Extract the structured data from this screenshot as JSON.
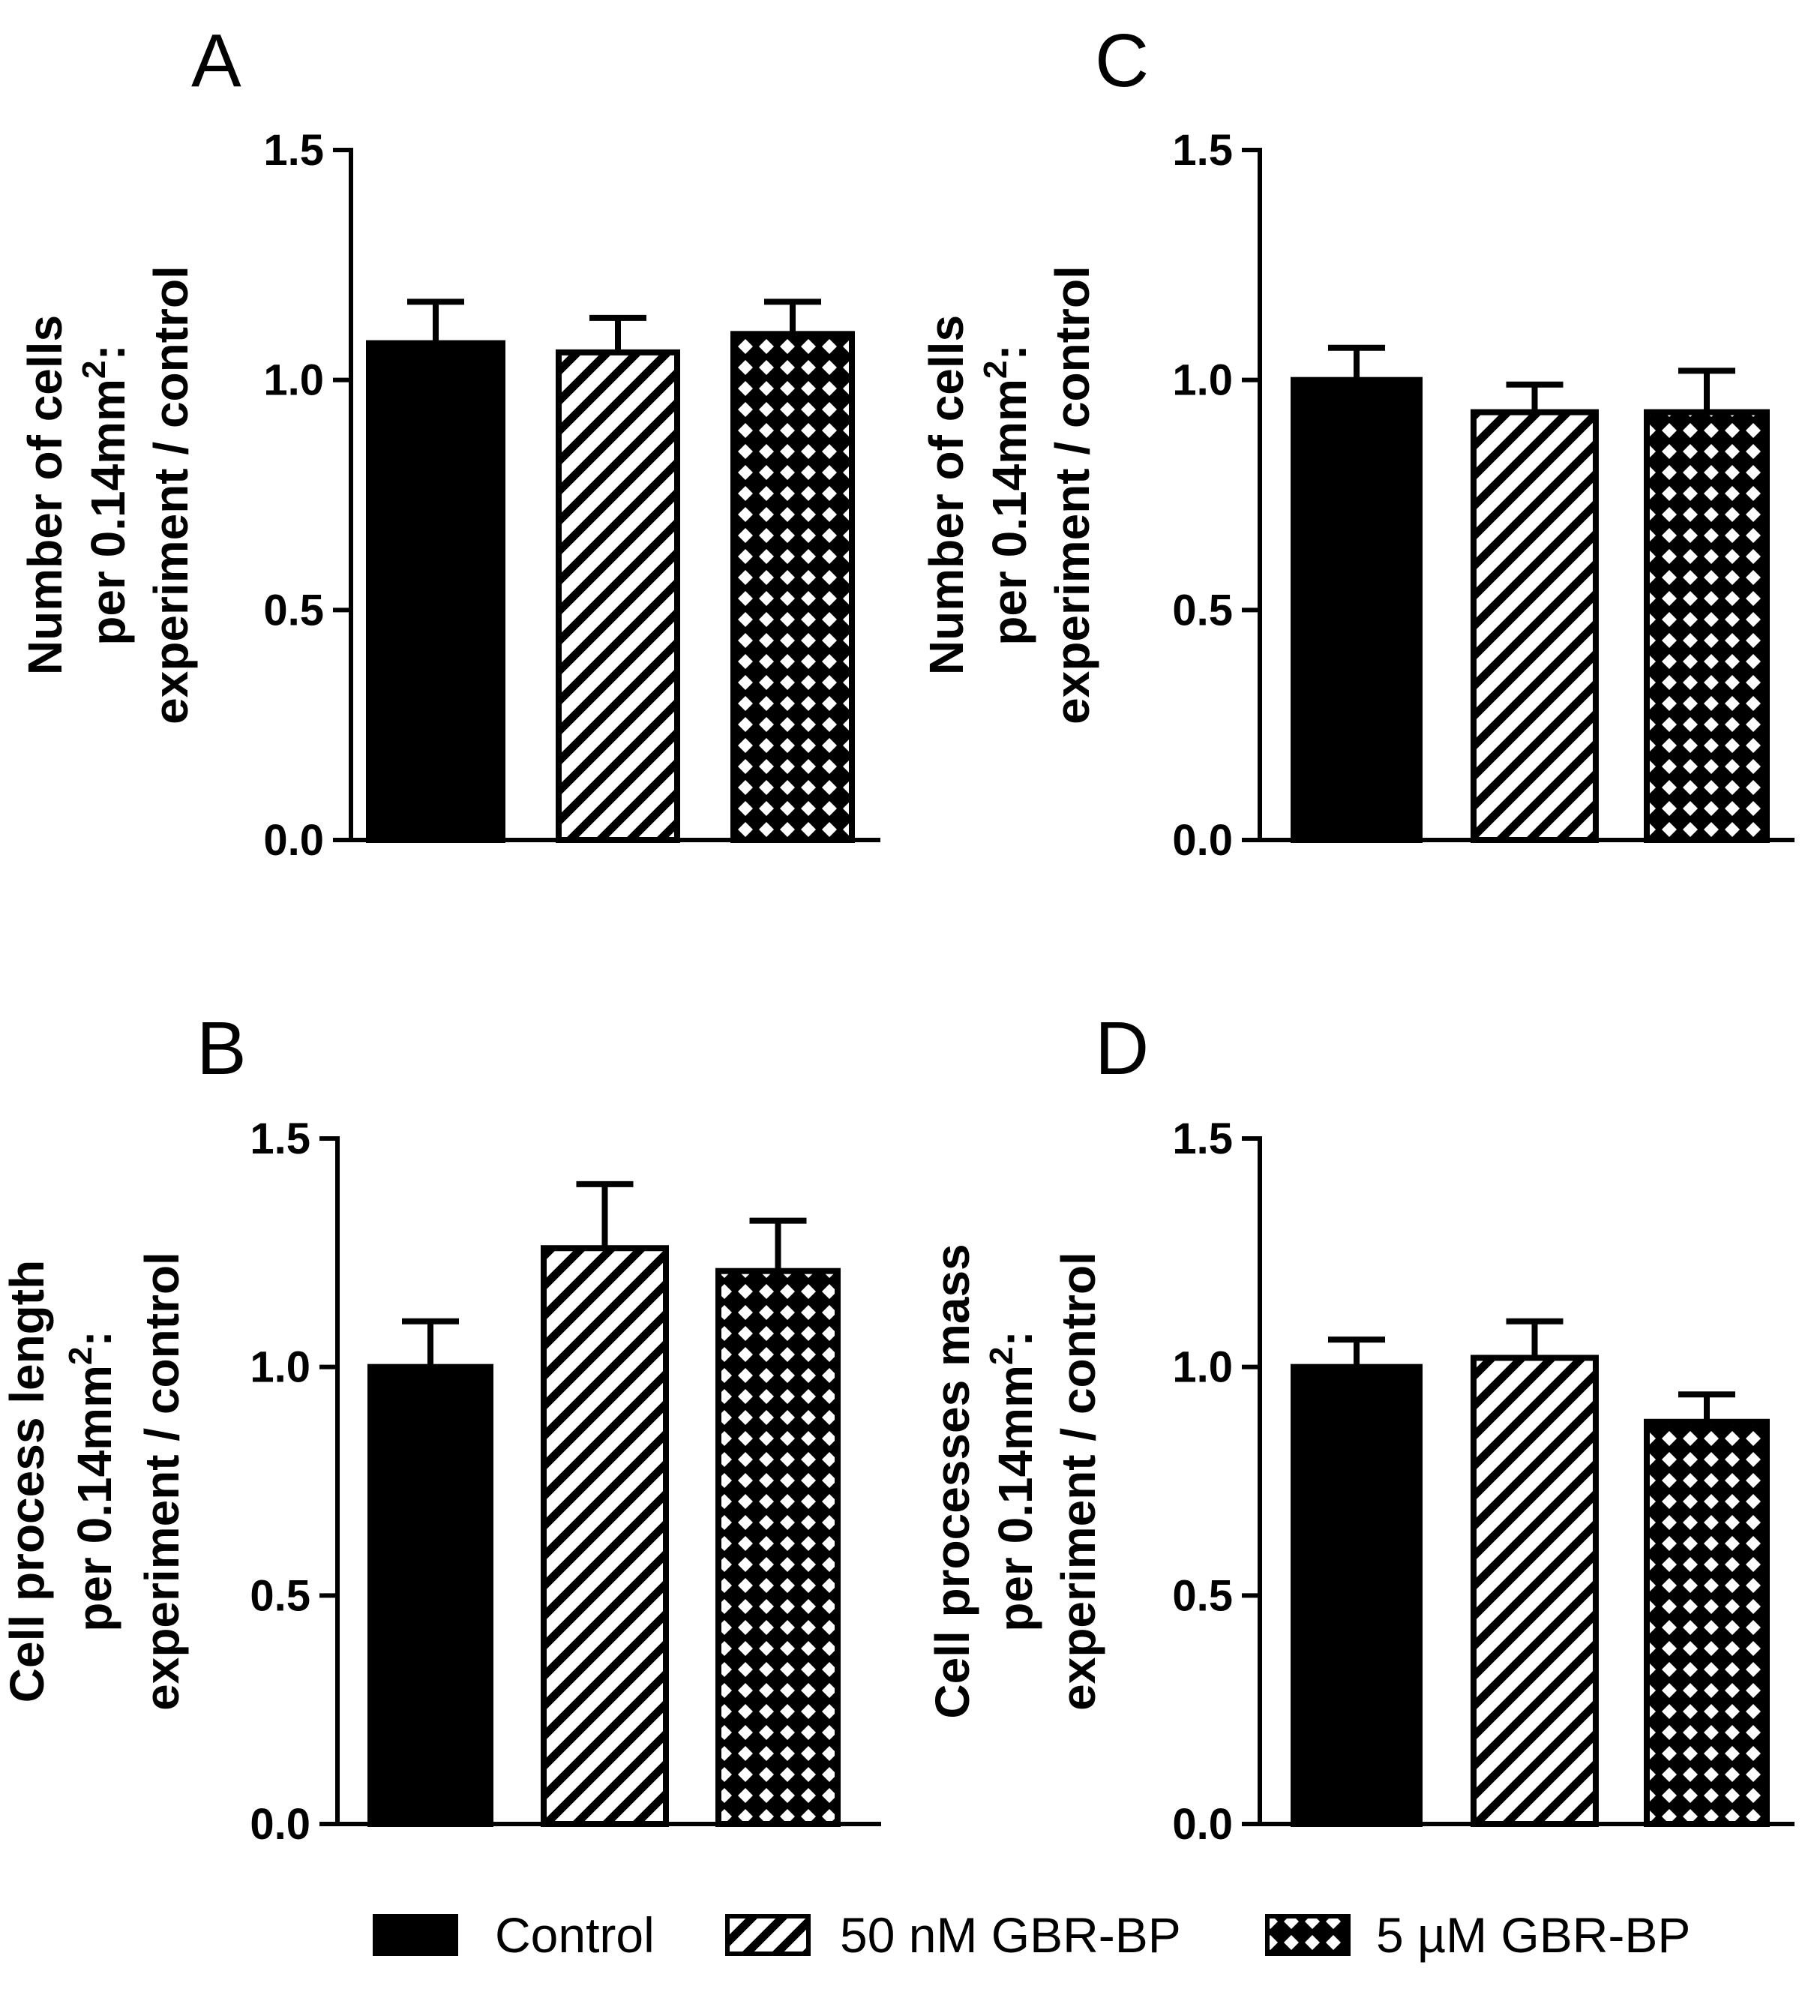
{
  "chart_data": [
    {
      "id": "A",
      "type": "bar",
      "panel_label": "A",
      "ylabel_lines": [
        "Number of cells",
        "per 0.14mm",
        "experiment / control"
      ],
      "ylabel_superscript": "2",
      "ylabel_sup_suffix": ":",
      "ylim": [
        0,
        1.5
      ],
      "yticks": [
        "0.0",
        "0.5",
        "1.0",
        "1.5"
      ],
      "categories": [
        "Control",
        "50 nM GBR-BP",
        "5 µM GBR-BP"
      ],
      "values": [
        1.08,
        1.06,
        1.1
      ],
      "errors": [
        0.09,
        0.075,
        0.07
      ]
    },
    {
      "id": "C",
      "type": "bar",
      "panel_label": "C",
      "ylabel_lines": [
        "Number of cells",
        "per 0.14mm",
        "experiment / control"
      ],
      "ylabel_superscript": "2",
      "ylabel_sup_suffix": ":",
      "ylim": [
        0,
        1.5
      ],
      "yticks": [
        "0.0",
        "0.5",
        "1.0",
        "1.5"
      ],
      "categories": [
        "Control",
        "50 nM GBR-BP",
        "5 µM GBR-BP"
      ],
      "values": [
        1.0,
        0.93,
        0.93
      ],
      "errors": [
        0.07,
        0.06,
        0.09
      ]
    },
    {
      "id": "B",
      "type": "bar",
      "panel_label": "B",
      "ylabel_lines": [
        "Cell process length",
        "per 0.14mm",
        "experiment / control"
      ],
      "ylabel_superscript": "2",
      "ylabel_sup_suffix": ":",
      "ylim": [
        0,
        1.5
      ],
      "yticks": [
        "0.0",
        "0.5",
        "1.0",
        "1.5"
      ],
      "categories": [
        "Control",
        "50 nM GBR-BP",
        "5 µM GBR-BP"
      ],
      "values": [
        1.0,
        1.26,
        1.21
      ],
      "errors": [
        0.1,
        0.14,
        0.11
      ]
    },
    {
      "id": "D",
      "type": "bar",
      "panel_label": "D",
      "ylabel_lines": [
        "Cell processes mass",
        "per 0.14mm",
        "experiment / control"
      ],
      "ylabel_superscript": "2",
      "ylabel_sup_suffix": ":",
      "ylim": [
        0,
        1.5
      ],
      "yticks": [
        "0.0",
        "0.5",
        "1.0",
        "1.5"
      ],
      "categories": [
        "Control",
        "50 nM GBR-BP",
        "5 µM GBR-BP"
      ],
      "values": [
        1.0,
        1.02,
        0.88
      ],
      "errors": [
        0.06,
        0.08,
        0.06
      ]
    }
  ],
  "legend": {
    "position": "bottom-center",
    "items": [
      {
        "label": "Control",
        "pattern": "solid"
      },
      {
        "label": "50 nM GBR-BP",
        "pattern": "hatch"
      },
      {
        "label": "5 µM GBR-BP",
        "pattern": "crosshatch"
      }
    ]
  },
  "colors": {
    "ink": "#000000",
    "background": "#ffffff"
  }
}
